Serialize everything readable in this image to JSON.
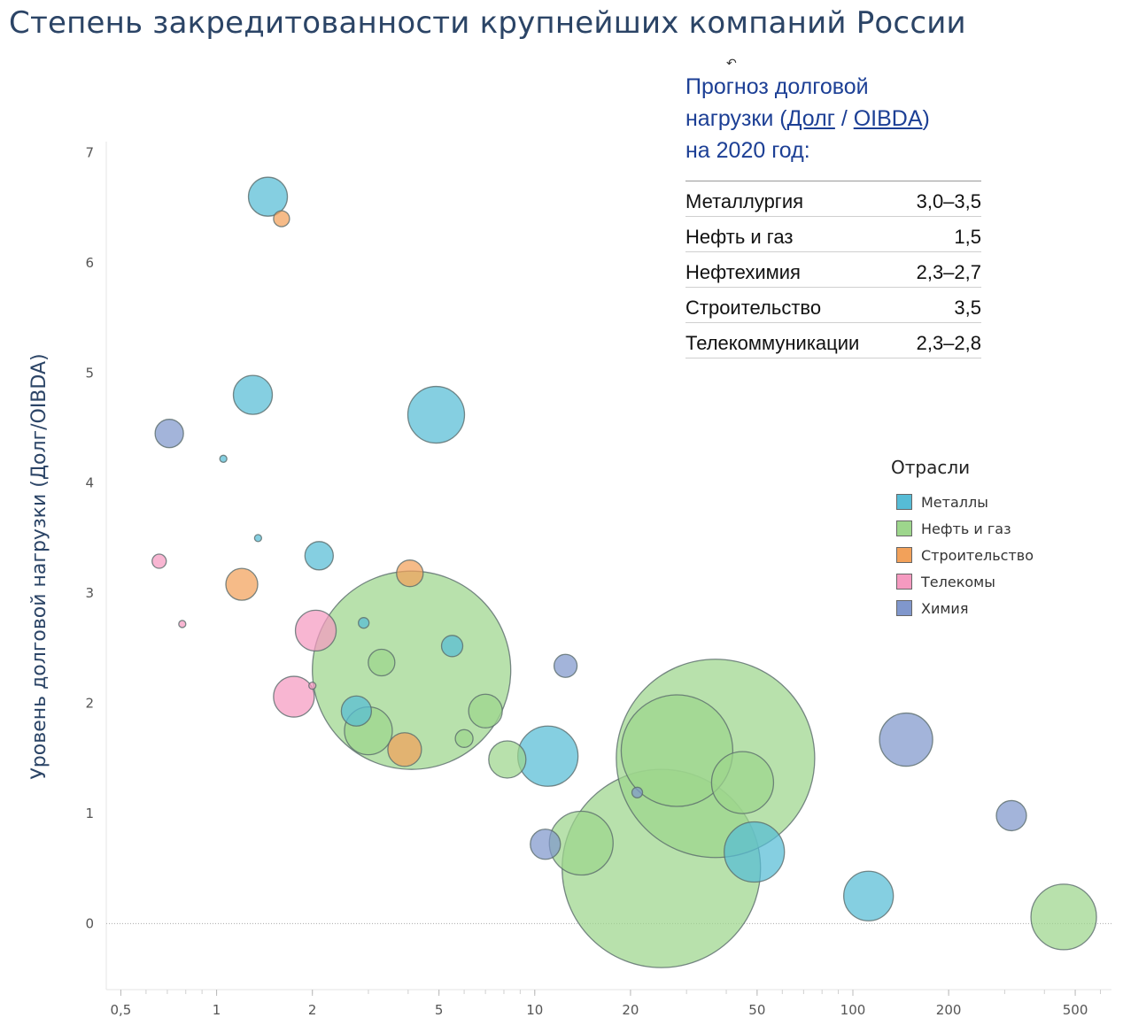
{
  "title": "Степень закредитованности крупнейших компаний России",
  "forecast": {
    "title_line1": "Прогноз долговой",
    "title_prefix": "нагрузки (",
    "title_link1": "Долг",
    "title_sep": " / ",
    "title_link2": "OIBDA",
    "title_suffix": ")",
    "title_line3": "на 2020 год:",
    "rows": [
      {
        "sector": "Металлургия",
        "value": "3,0–3,5"
      },
      {
        "sector": "Нефть и газ",
        "value": "1,5"
      },
      {
        "sector": "Нефтехимия",
        "value": "2,3–2,7"
      },
      {
        "sector": "Строительство",
        "value": "3,5"
      },
      {
        "sector": "Телекоммуникации",
        "value": "2,3–2,8"
      }
    ]
  },
  "legend": {
    "title": "Отрасли",
    "items": [
      {
        "label": "Металлы",
        "color": "#56bcd6"
      },
      {
        "label": "Нефть и газ",
        "color": "#9dd68c"
      },
      {
        "label": "Строительство",
        "color": "#f2a15a"
      },
      {
        "label": "Телекомы",
        "color": "#f59ac0"
      },
      {
        "label": "Химия",
        "color": "#8097cc"
      }
    ]
  },
  "chart_data": {
    "type": "scatter",
    "xlabel": "",
    "ylabel": "Уровень долговой нагрузки (Долг/OIBDA)",
    "x_scale": "log",
    "xlim": [
      0.45,
      650
    ],
    "ylim": [
      -0.6,
      7.1
    ],
    "x_ticks": [
      0.5,
      1,
      2,
      5,
      10,
      20,
      50,
      100,
      200,
      500
    ],
    "x_tick_labels": [
      "0,5",
      "1",
      "2",
      "5",
      "10",
      "20",
      "50",
      "100",
      "200",
      "500"
    ],
    "y_ticks": [
      0,
      1,
      2,
      3,
      4,
      5,
      6,
      7
    ],
    "y_tick_labels": [
      "0",
      "1",
      "2",
      "3",
      "4",
      "5",
      "6",
      "7"
    ],
    "zero_line": true,
    "series": [
      {
        "name": "Металлы",
        "color": "#56bcd6",
        "points": [
          {
            "x": 1.45,
            "y": 6.6,
            "size": 22
          },
          {
            "x": 1.3,
            "y": 4.8,
            "size": 22
          },
          {
            "x": 4.9,
            "y": 4.62,
            "size": 32
          },
          {
            "x": 1.05,
            "y": 4.22,
            "size": 4
          },
          {
            "x": 1.35,
            "y": 3.5,
            "size": 4
          },
          {
            "x": 2.1,
            "y": 3.34,
            "size": 16
          },
          {
            "x": 2.9,
            "y": 2.73,
            "size": 6
          },
          {
            "x": 5.5,
            "y": 2.52,
            "size": 12
          },
          {
            "x": 2.75,
            "y": 1.93,
            "size": 17
          },
          {
            "x": 11,
            "y": 1.52,
            "size": 34
          },
          {
            "x": 49,
            "y": 0.65,
            "size": 34
          },
          {
            "x": 112,
            "y": 0.25,
            "size": 28
          }
        ]
      },
      {
        "name": "Нефть и газ",
        "color": "#9dd68c",
        "points": [
          {
            "x": 4.1,
            "y": 2.3,
            "size": 112
          },
          {
            "x": 3.3,
            "y": 2.37,
            "size": 15
          },
          {
            "x": 7.0,
            "y": 1.93,
            "size": 19
          },
          {
            "x": 6.0,
            "y": 1.68,
            "size": 10
          },
          {
            "x": 3.0,
            "y": 1.75,
            "size": 27
          },
          {
            "x": 8.2,
            "y": 1.49,
            "size": 21
          },
          {
            "x": 14,
            "y": 0.73,
            "size": 36
          },
          {
            "x": 25,
            "y": 0.5,
            "size": 112
          },
          {
            "x": 37,
            "y": 1.5,
            "size": 112
          },
          {
            "x": 28,
            "y": 1.57,
            "size": 63
          },
          {
            "x": 45,
            "y": 1.28,
            "size": 35
          },
          {
            "x": 460,
            "y": 0.06,
            "size": 37
          }
        ]
      },
      {
        "name": "Строительство",
        "color": "#f2a15a",
        "points": [
          {
            "x": 1.6,
            "y": 6.4,
            "size": 9
          },
          {
            "x": 1.2,
            "y": 3.08,
            "size": 18
          },
          {
            "x": 4.05,
            "y": 3.18,
            "size": 15
          },
          {
            "x": 3.9,
            "y": 1.58,
            "size": 19
          }
        ]
      },
      {
        "name": "Телекомы",
        "color": "#f59ac0",
        "points": [
          {
            "x": 0.66,
            "y": 3.29,
            "size": 8
          },
          {
            "x": 0.78,
            "y": 2.72,
            "size": 4
          },
          {
            "x": 2.05,
            "y": 2.66,
            "size": 23
          },
          {
            "x": 1.75,
            "y": 2.06,
            "size": 23
          },
          {
            "x": 2.0,
            "y": 2.16,
            "size": 4
          }
        ]
      },
      {
        "name": "Химия",
        "color": "#8097cc",
        "points": [
          {
            "x": 0.71,
            "y": 4.45,
            "size": 16
          },
          {
            "x": 12.5,
            "y": 2.34,
            "size": 13
          },
          {
            "x": 21,
            "y": 1.19,
            "size": 6
          },
          {
            "x": 10.8,
            "y": 0.72,
            "size": 17
          },
          {
            "x": 147,
            "y": 1.67,
            "size": 30
          },
          {
            "x": 315,
            "y": 0.98,
            "size": 17
          }
        ]
      }
    ]
  }
}
